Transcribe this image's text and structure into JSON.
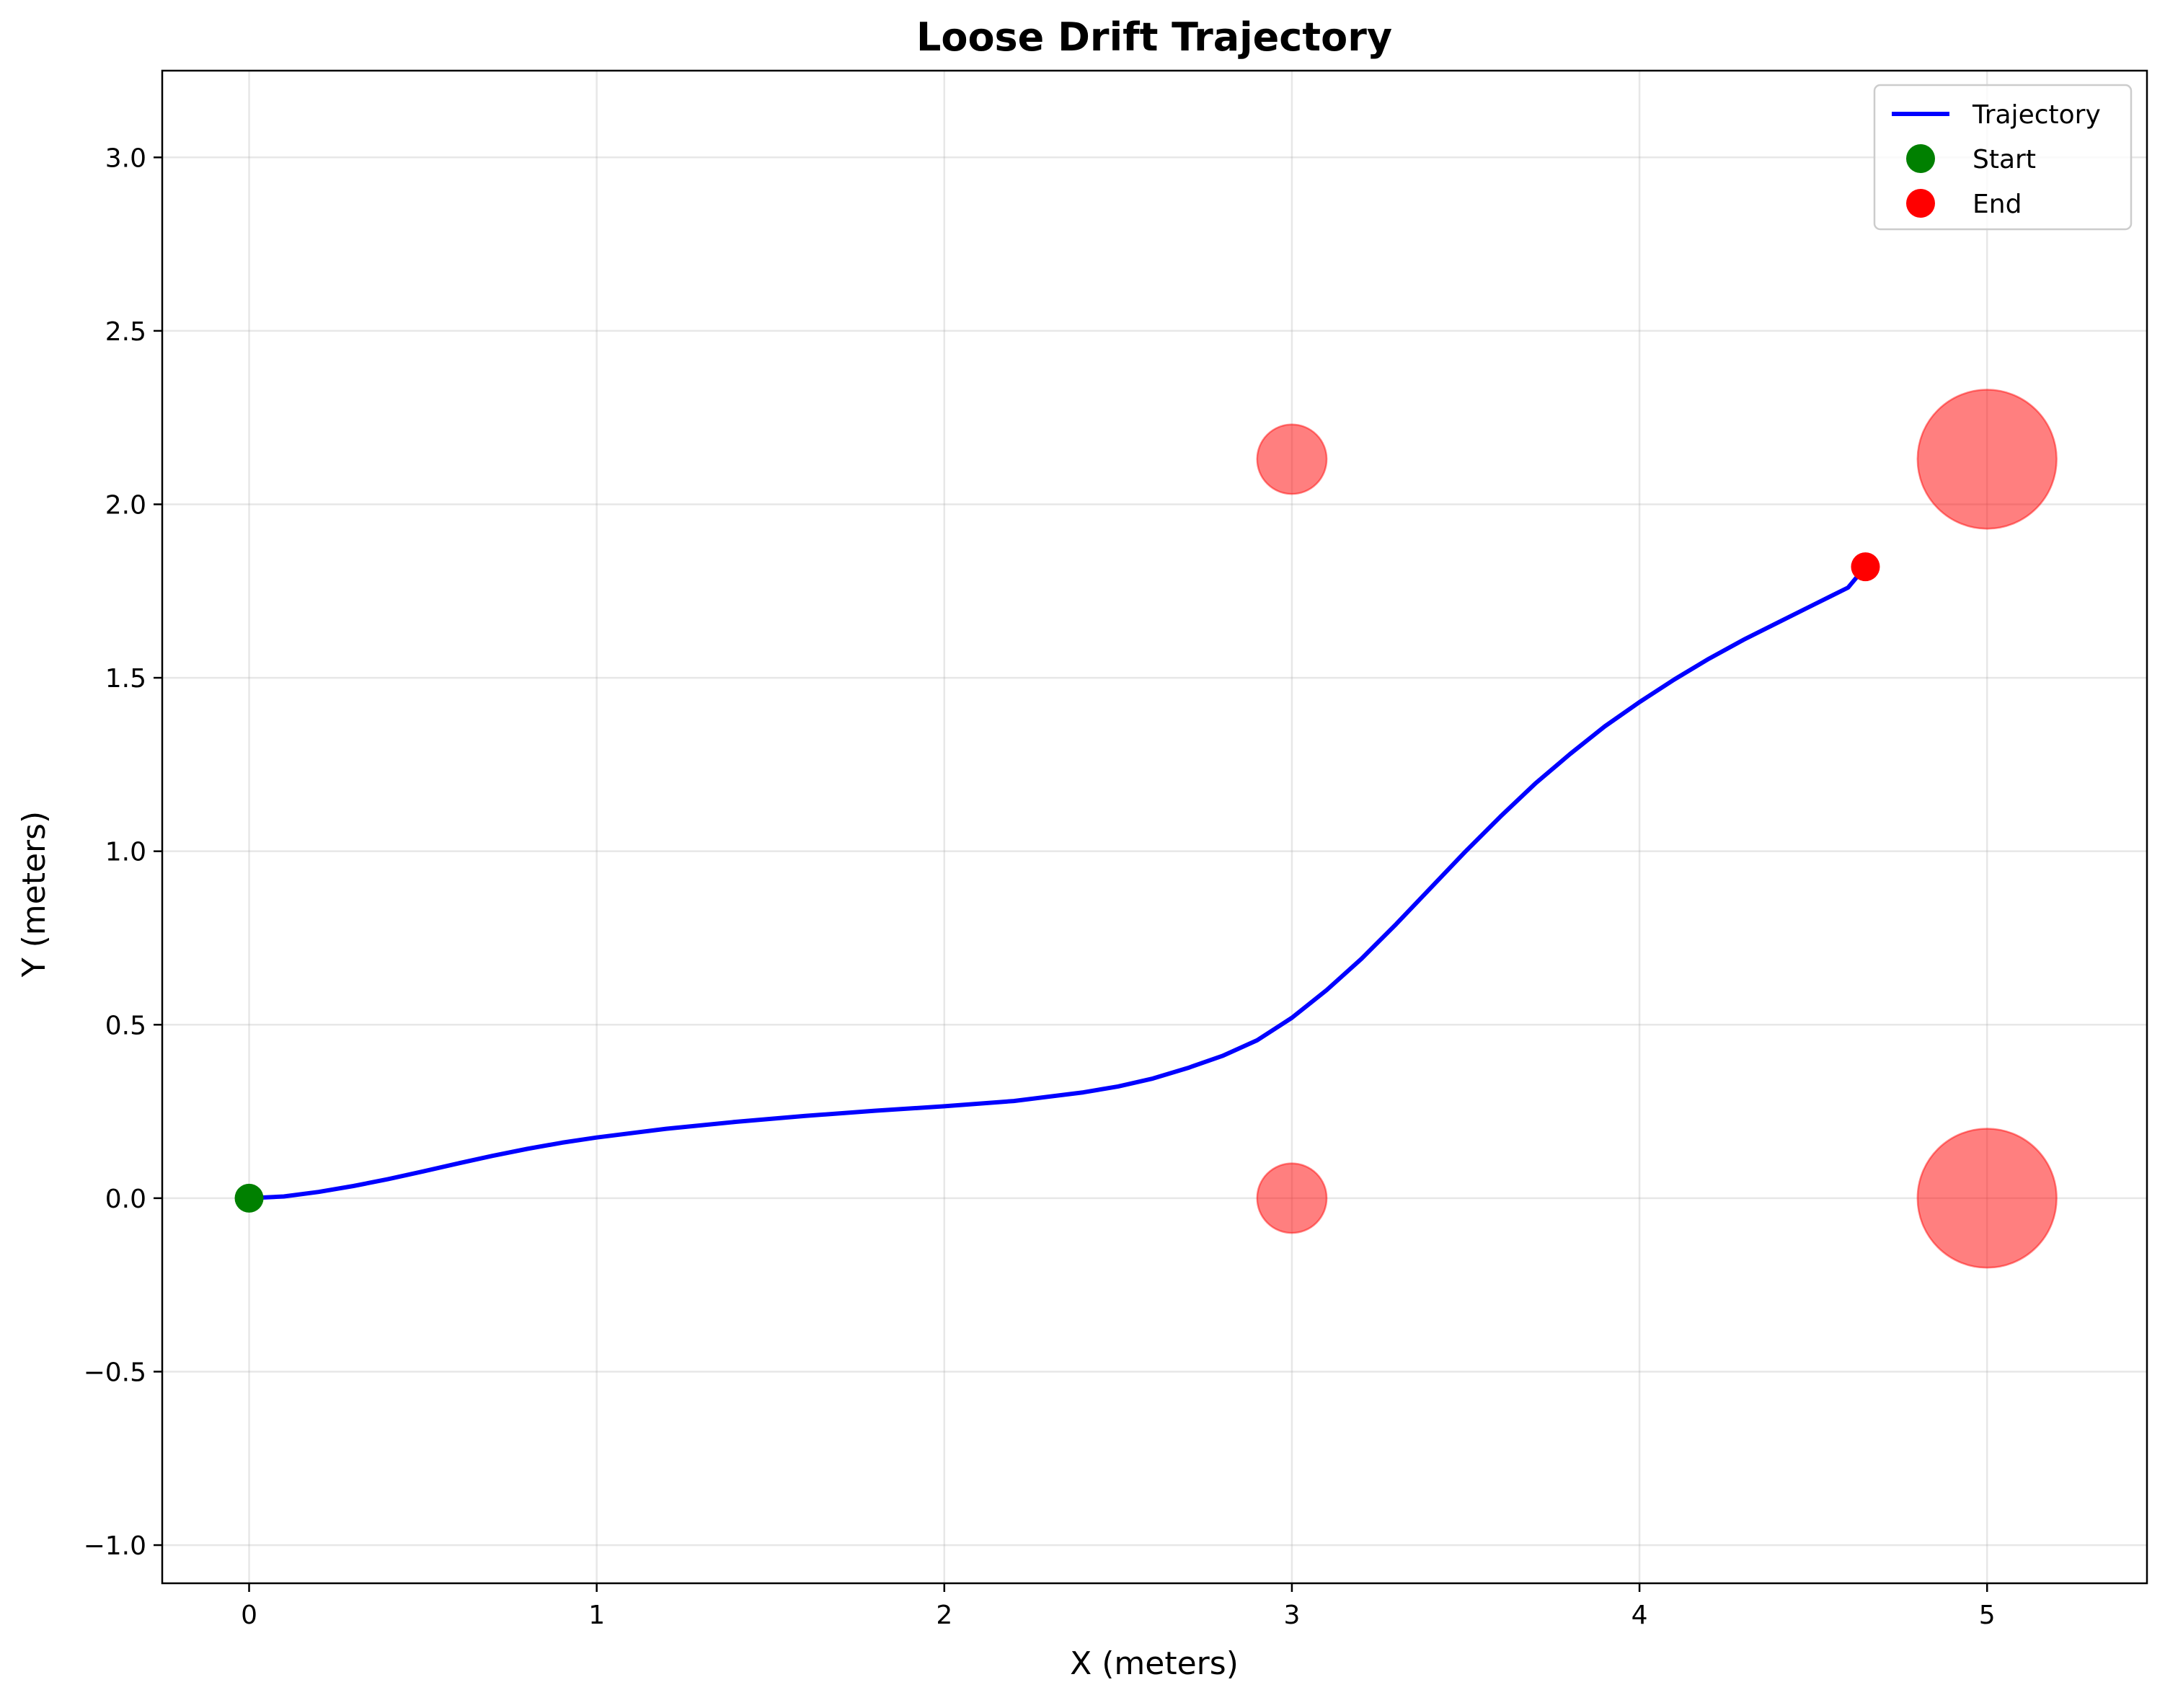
{
  "chart_data": {
    "type": "line",
    "title": "Loose Drift Trajectory",
    "xlabel": "X (meters)",
    "ylabel": "Y (meters)",
    "xlim": [
      -0.25,
      5.46
    ],
    "ylim": [
      -1.11,
      3.25
    ],
    "x_ticks": [
      0,
      1,
      2,
      3,
      4,
      5
    ],
    "x_tick_labels": [
      "0",
      "1",
      "2",
      "3",
      "4",
      "5"
    ],
    "y_ticks": [
      -1.0,
      -0.5,
      0.0,
      0.5,
      1.0,
      1.5,
      2.0,
      2.5,
      3.0
    ],
    "y_tick_labels": [
      "−1.0",
      "−0.5",
      "0.0",
      "0.5",
      "1.0",
      "1.5",
      "2.0",
      "2.5",
      "3.0"
    ],
    "grid": true,
    "legend_position": "top-right",
    "series": [
      {
        "name": "Trajectory",
        "kind": "line",
        "color": "#0000ff",
        "x": [
          0.0,
          0.1,
          0.2,
          0.3,
          0.4,
          0.5,
          0.6,
          0.7,
          0.8,
          0.9,
          1.0,
          1.2,
          1.4,
          1.6,
          1.8,
          2.0,
          2.2,
          2.4,
          2.5,
          2.6,
          2.7,
          2.8,
          2.9,
          3.0,
          3.1,
          3.2,
          3.3,
          3.4,
          3.5,
          3.6,
          3.7,
          3.8,
          3.9,
          4.0,
          4.1,
          4.2,
          4.3,
          4.4,
          4.5,
          4.6,
          4.65
        ],
        "y": [
          0.0,
          0.005,
          0.018,
          0.035,
          0.055,
          0.077,
          0.1,
          0.122,
          0.142,
          0.16,
          0.175,
          0.2,
          0.22,
          0.237,
          0.252,
          0.265,
          0.28,
          0.305,
          0.322,
          0.345,
          0.375,
          0.41,
          0.455,
          0.52,
          0.6,
          0.69,
          0.79,
          0.895,
          1.0,
          1.1,
          1.195,
          1.28,
          1.36,
          1.43,
          1.495,
          1.555,
          1.61,
          1.66,
          1.71,
          1.76,
          1.82
        ]
      },
      {
        "name": "Start",
        "kind": "point",
        "color": "#008000",
        "x": [
          0.0
        ],
        "y": [
          0.0
        ]
      },
      {
        "name": "End",
        "kind": "point",
        "color": "#ff0000",
        "x": [
          4.65
        ],
        "y": [
          1.82
        ]
      }
    ],
    "obstacles": {
      "color": "#ff0000",
      "opacity": 0.5,
      "points": [
        {
          "x": 3.0,
          "y": 2.13,
          "r": 0.1
        },
        {
          "x": 3.0,
          "y": 0.0,
          "r": 0.1
        },
        {
          "x": 5.0,
          "y": 2.13,
          "r": 0.2
        },
        {
          "x": 5.0,
          "y": 0.0,
          "r": 0.2
        }
      ]
    },
    "legend": [
      {
        "label": "Trajectory",
        "marker": "line",
        "color": "#0000ff"
      },
      {
        "label": "Start",
        "marker": "circle",
        "color": "#008000"
      },
      {
        "label": "End",
        "marker": "circle",
        "color": "#ff0000"
      }
    ]
  }
}
